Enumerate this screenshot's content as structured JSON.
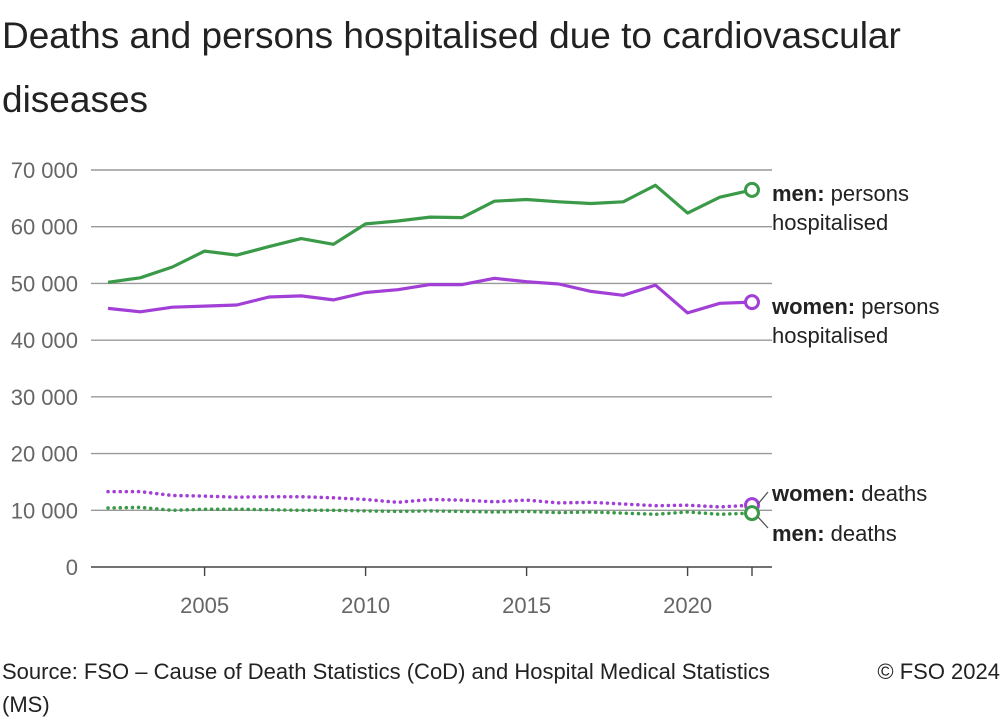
{
  "chart_data": {
    "type": "line",
    "title": "Deaths and persons hospitalised due to cardiovascular diseases",
    "xlabel": "",
    "ylabel": "",
    "x": [
      2002,
      2003,
      2004,
      2005,
      2006,
      2007,
      2008,
      2009,
      2010,
      2011,
      2012,
      2013,
      2014,
      2015,
      2016,
      2017,
      2018,
      2019,
      2020,
      2021,
      2022
    ],
    "xlim": [
      2002,
      2022
    ],
    "ylim": [
      0,
      70000
    ],
    "x_ticks": [
      2005,
      2010,
      2015,
      2020
    ],
    "y_ticks": [
      0,
      10000,
      20000,
      30000,
      40000,
      50000,
      60000,
      70000
    ],
    "y_tick_labels": [
      "0",
      "10 000",
      "20 000",
      "30 000",
      "40 000",
      "50 000",
      "60 000",
      "70 000"
    ],
    "grid": true,
    "series": [
      {
        "name": "men: persons hospitalised",
        "label_bold": "men:",
        "label_rest": " persons",
        "label_line2": "hospitalised",
        "color": "#3a9a48",
        "style": "solid",
        "values": [
          50200,
          51000,
          52900,
          55700,
          55000,
          56500,
          57900,
          56900,
          60500,
          61000,
          61700,
          61600,
          64500,
          64800,
          64400,
          64100,
          64400,
          67300,
          62400,
          65200,
          66500
        ]
      },
      {
        "name": "women: persons hospitalised",
        "label_bold": "women:",
        "label_rest": " persons",
        "label_line2": "hospitalised",
        "color": "#a23fd6",
        "style": "solid",
        "values": [
          45600,
          45000,
          45800,
          46000,
          46200,
          47600,
          47800,
          47100,
          48400,
          48900,
          49800,
          49800,
          50900,
          50300,
          49900,
          48600,
          47900,
          49700,
          44800,
          46500,
          46700
        ]
      },
      {
        "name": "women: deaths",
        "label_bold": "women:",
        "label_rest": " deaths",
        "label_line2": "",
        "color": "#a23fd6",
        "style": "dotted",
        "values": [
          13300,
          13300,
          12600,
          12500,
          12300,
          12400,
          12400,
          12200,
          11900,
          11400,
          11900,
          11800,
          11500,
          11800,
          11300,
          11400,
          11100,
          10800,
          10900,
          10600,
          10900
        ]
      },
      {
        "name": "men: deaths",
        "label_bold": "men:",
        "label_rest": " deaths",
        "label_line2": "",
        "color": "#3a9a48",
        "style": "dotted",
        "values": [
          10400,
          10500,
          10000,
          10200,
          10200,
          10100,
          10000,
          10000,
          9900,
          9800,
          9900,
          9800,
          9700,
          9800,
          9600,
          9700,
          9500,
          9300,
          9700,
          9300,
          9500
        ]
      }
    ]
  },
  "footer": {
    "source": "Source: FSO – Cause of Death Statistics (CoD) and Hospital Medical Statistics (MS)",
    "copyright": "© FSO 2024"
  }
}
